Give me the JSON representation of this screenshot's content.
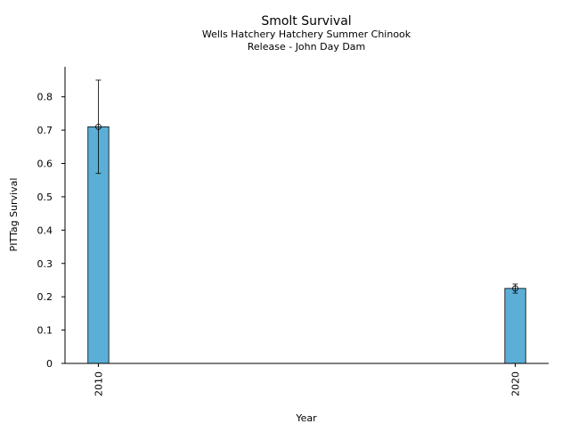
{
  "chart_data": {
    "type": "bar",
    "title": "Smolt Survival",
    "subtitle_lines": [
      "Wells Hatchery Hatchery Summer Chinook",
      "Release - John Day Dam"
    ],
    "xlabel": "Year",
    "ylabel": "PITTag Survival",
    "categories": [
      "2010",
      "2020"
    ],
    "x": [
      2010,
      2020
    ],
    "values": [
      0.71,
      0.225
    ],
    "error_low": [
      0.57,
      0.211
    ],
    "error_high": [
      0.85,
      0.238
    ],
    "ylim": [
      0,
      0.89
    ],
    "xlim": [
      2009.2,
      2020.8
    ],
    "yticks": [
      0,
      0.1,
      0.2,
      0.3,
      0.4,
      0.5,
      0.6,
      0.7,
      0.8
    ],
    "ytick_labels": [
      "0",
      "0.1",
      "0.2",
      "0.3",
      "0.4",
      "0.5",
      "0.6",
      "0.7",
      "0.8"
    ],
    "grid": false,
    "bar_color": "#5bafd6",
    "edge_color": "#000000"
  }
}
